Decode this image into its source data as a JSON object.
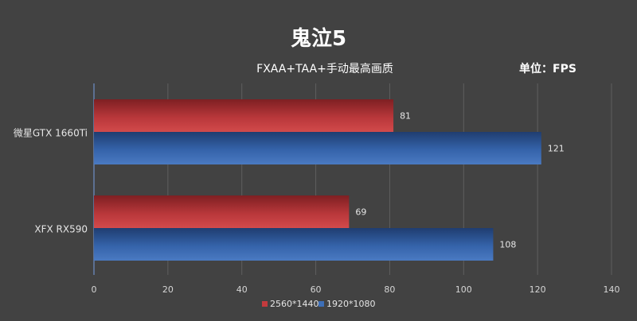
{
  "chart_data": {
    "type": "bar",
    "orientation": "horizontal",
    "title": "鬼泣5",
    "subtitle": "FXAA+TAA+手动最高画质",
    "unit_label": "单位：FPS",
    "categories": [
      "微星GTX 1660Ti",
      "XFX RX590"
    ],
    "series": [
      {
        "name": "2560*1440",
        "values": [
          81,
          69
        ],
        "color": "#c43a3d"
      },
      {
        "name": "1920*1080",
        "values": [
          121,
          108
        ],
        "color": "#3d6fb8"
      }
    ],
    "xlim": [
      0,
      140
    ],
    "xticks": [
      0,
      20,
      40,
      60,
      80,
      100,
      120,
      140
    ],
    "grid": "vertical",
    "legend_position": "bottom"
  }
}
